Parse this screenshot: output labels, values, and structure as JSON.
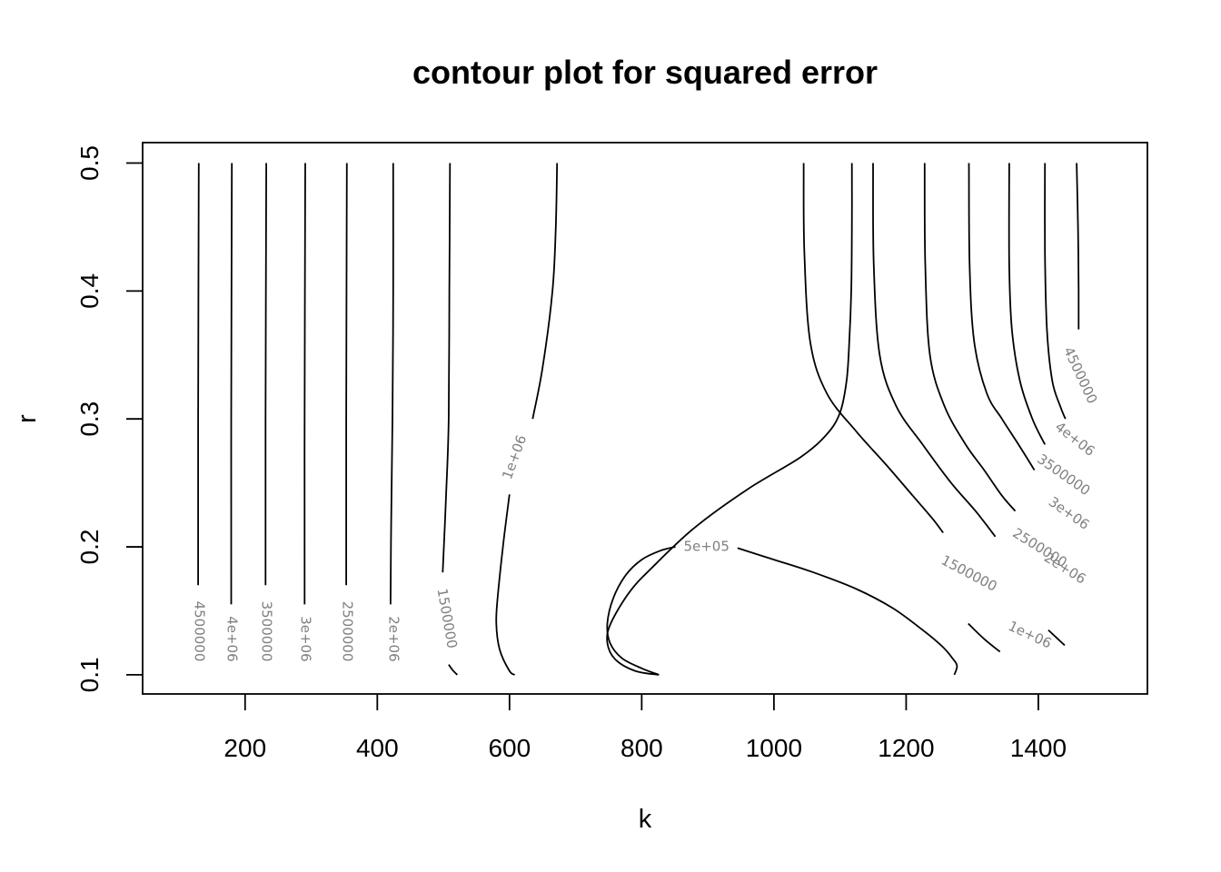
{
  "chart_data": {
    "type": "contour",
    "title": "contour plot for squared error",
    "xlabel": "k",
    "ylabel": "r",
    "xlim": [
      45,
      1565
    ],
    "ylim": [
      0.085,
      0.516
    ],
    "xticks": [
      200,
      400,
      600,
      800,
      1000,
      1200,
      1400
    ],
    "yticks": [
      0.1,
      0.2,
      0.3,
      0.4,
      0.5
    ],
    "grid": false,
    "levels": [
      {
        "name": "4500000",
        "label": "4500000",
        "segments": [
          [
            [
              130,
              0.5
            ],
            [
              129,
              0.3
            ],
            [
              129,
              0.17
            ]
          ],
          [
            [
              1458,
              0.5
            ],
            [
              1460,
              0.45
            ],
            [
              1461,
              0.4
            ],
            [
              1461,
              0.37
            ]
          ]
        ]
      },
      {
        "name": "4e+06",
        "label": "4e+06",
        "segments": [
          [
            [
              180,
              0.5
            ],
            [
              179,
              0.3
            ],
            [
              179,
              0.155
            ]
          ],
          [
            [
              1410,
              0.5
            ],
            [
              1410,
              0.43
            ],
            [
              1413,
              0.37
            ],
            [
              1421,
              0.33
            ],
            [
              1433,
              0.31
            ],
            [
              1441,
              0.3
            ]
          ]
        ]
      },
      {
        "name": "3500000",
        "label": "3500000",
        "segments": [
          [
            [
              232,
              0.5
            ],
            [
              231,
              0.3
            ],
            [
              231,
              0.17
            ]
          ],
          [
            [
              1356,
              0.5
            ],
            [
              1356,
              0.42
            ],
            [
              1360,
              0.37
            ],
            [
              1372,
              0.33
            ],
            [
              1391,
              0.3
            ],
            [
              1410,
              0.28
            ]
          ]
        ]
      },
      {
        "name": "3e+06",
        "label": "3e+06",
        "segments": [
          [
            [
              291,
              0.5
            ],
            [
              290,
              0.3
            ],
            [
              290,
              0.155
            ]
          ],
          [
            [
              1295,
              0.5
            ],
            [
              1296,
              0.42
            ],
            [
              1303,
              0.36
            ],
            [
              1322,
              0.32
            ],
            [
              1345,
              0.3
            ],
            [
              1370,
              0.28
            ],
            [
              1394,
              0.26
            ]
          ]
        ]
      },
      {
        "name": "2500000",
        "label": "2500000",
        "segments": [
          [
            [
              354,
              0.5
            ],
            [
              353,
              0.3
            ],
            [
              353,
              0.17
            ]
          ],
          [
            [
              1228,
              0.5
            ],
            [
              1229,
              0.42
            ],
            [
              1236,
              0.35
            ],
            [
              1258,
              0.31
            ],
            [
              1290,
              0.28
            ],
            [
              1318,
              0.26
            ],
            [
              1345,
              0.24
            ],
            [
              1365,
              0.228
            ]
          ]
        ]
      },
      {
        "name": "2e+06",
        "label": "2e+06",
        "segments": [
          [
            [
              424,
              0.5
            ],
            [
              424,
              0.4
            ],
            [
              423,
              0.3
            ],
            [
              421,
              0.22
            ],
            [
              420,
              0.155
            ]
          ],
          [
            [
              1150,
              0.5
            ],
            [
              1151,
              0.42
            ],
            [
              1160,
              0.35
            ],
            [
              1185,
              0.31
            ],
            [
              1225,
              0.28
            ],
            [
              1268,
              0.25
            ],
            [
              1305,
              0.228
            ],
            [
              1335,
              0.208
            ]
          ]
        ]
      },
      {
        "name": "1500000",
        "label": "1500000",
        "segments": [
          [
            [
              510,
              0.5
            ],
            [
              509,
              0.4
            ],
            [
              508,
              0.3
            ],
            [
              504,
              0.24
            ],
            [
              499,
              0.18
            ]
          ],
          [
            [
              508,
              0.108
            ],
            [
              515,
              0.103
            ],
            [
              521,
              0.1
            ]
          ],
          [
            [
              1045,
              0.5
            ],
            [
              1046,
              0.43
            ],
            [
              1055,
              0.36
            ],
            [
              1080,
              0.32
            ],
            [
              1125,
              0.29
            ],
            [
              1170,
              0.264
            ],
            [
              1210,
              0.24
            ],
            [
              1240,
              0.222
            ],
            [
              1256,
              0.211
            ]
          ]
        ]
      },
      {
        "name": "1e+06",
        "label": "1e+06",
        "segments": [
          [
            [
              600,
              0.241
            ],
            [
              590,
              0.2
            ],
            [
              582,
              0.16
            ],
            [
              580,
              0.14
            ],
            [
              585,
              0.12
            ],
            [
              600,
              0.103
            ],
            [
              608,
              0.1
            ]
          ],
          [
            [
              635,
              0.3
            ],
            [
              650,
              0.34
            ],
            [
              665,
              0.4
            ],
            [
              670,
              0.45
            ],
            [
              672,
              0.5
            ]
          ],
          [
            [
              826,
              0.1
            ],
            [
              790,
              0.103
            ],
            [
              760,
              0.112
            ],
            [
              748,
              0.125
            ],
            [
              753,
              0.14
            ],
            [
              782,
              0.165
            ],
            [
              818,
              0.185
            ],
            [
              880,
              0.215
            ],
            [
              960,
              0.245
            ],
            [
              1040,
              0.27
            ],
            [
              1080,
              0.288
            ],
            [
              1100,
              0.305
            ],
            [
              1110,
              0.33
            ],
            [
              1114,
              0.36
            ],
            [
              1117,
              0.4
            ],
            [
              1118,
              0.45
            ],
            [
              1118,
              0.5
            ]
          ],
          [
            [
              1294,
              0.14
            ],
            [
              1318,
              0.128
            ],
            [
              1342,
              0.118
            ]
          ],
          [
            [
              1415,
              0.135
            ],
            [
              1440,
              0.123
            ]
          ]
        ]
      },
      {
        "name": "5e+05",
        "label": "5e+05",
        "segments": [
          [
            [
              851,
              0.2
            ],
            [
              828,
              0.197
            ],
            [
              800,
              0.19
            ],
            [
              776,
              0.178
            ],
            [
              757,
              0.16
            ],
            [
              748,
              0.14
            ],
            [
              752,
              0.125
            ],
            [
              770,
              0.113
            ],
            [
              800,
              0.105
            ],
            [
              826,
              0.1
            ]
          ],
          [
            [
              945,
              0.199
            ],
            [
              1000,
              0.19
            ],
            [
              1060,
              0.18
            ],
            [
              1125,
              0.167
            ],
            [
              1180,
              0.152
            ],
            [
              1225,
              0.135
            ],
            [
              1255,
              0.122
            ],
            [
              1270,
              0.113
            ],
            [
              1277,
              0.107
            ],
            [
              1273,
              0.1
            ]
          ]
        ]
      }
    ],
    "inline_labels": [
      {
        "text": "4500000",
        "x": 130,
        "y": 0.134,
        "angle": 90
      },
      {
        "text": "4e+06",
        "x": 180,
        "y": 0.128,
        "angle": 90
      },
      {
        "text": "3500000",
        "x": 232,
        "y": 0.134,
        "angle": 90
      },
      {
        "text": "3e+06",
        "x": 291,
        "y": 0.128,
        "angle": 90
      },
      {
        "text": "2500000",
        "x": 354,
        "y": 0.134,
        "angle": 90
      },
      {
        "text": "2e+06",
        "x": 424,
        "y": 0.128,
        "angle": 90
      },
      {
        "text": "1500000",
        "x": 505,
        "y": 0.144,
        "angle": 80
      },
      {
        "text": "1e+06",
        "x": 608,
        "y": 0.27,
        "angle": -70
      },
      {
        "text": "5e+05",
        "x": 898,
        "y": 0.2,
        "angle": 0
      },
      {
        "text": "4500000",
        "x": 1463,
        "y": 0.334,
        "angle": 65
      },
      {
        "text": "4e+06",
        "x": 1455,
        "y": 0.284,
        "angle": 38
      },
      {
        "text": "3500000",
        "x": 1438,
        "y": 0.256,
        "angle": 35
      },
      {
        "text": "3e+06",
        "x": 1446,
        "y": 0.226,
        "angle": 35
      },
      {
        "text": "2500000",
        "x": 1402,
        "y": 0.199,
        "angle": 32
      },
      {
        "text": "2e+06",
        "x": 1440,
        "y": 0.183,
        "angle": 32
      },
      {
        "text": "1500000",
        "x": 1295,
        "y": 0.179,
        "angle": 28
      },
      {
        "text": "1e+06",
        "x": 1387,
        "y": 0.131,
        "angle": 25
      }
    ]
  }
}
